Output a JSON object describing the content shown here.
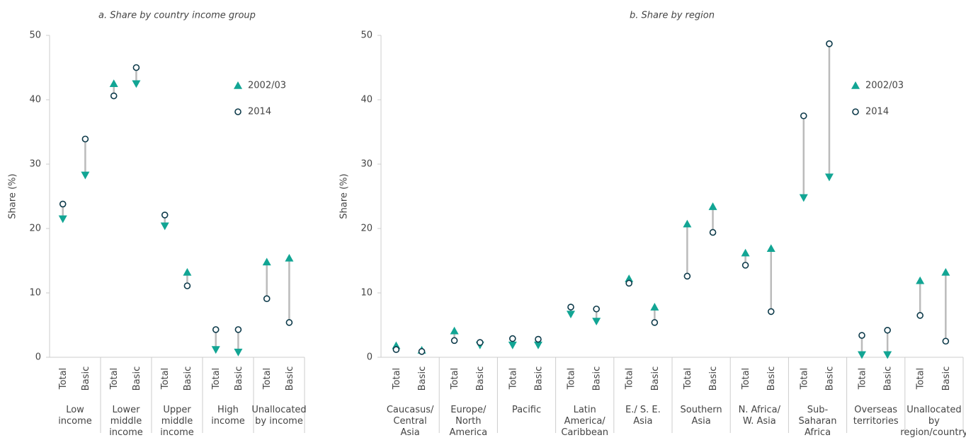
{
  "chart_data": [
    {
      "type": "dumbbell",
      "title": "a. Share by country income group",
      "y_label": "Share (%)",
      "groups": [
        "Low income",
        "Lower middle income",
        "Upper middle income",
        "High income",
        "Unallocated by income"
      ],
      "subcategories": [
        "Total",
        "Basic"
      ],
      "series": [
        {
          "name": "2002/03",
          "color": "#12a594",
          "marker": "triangle",
          "values": [
            21.5,
            28.3,
            42.5,
            42.5,
            20.4,
            13.2,
            1.2,
            0.8,
            14.8,
            15.4
          ]
        },
        {
          "name": "2014",
          "color": "#0d3a4a",
          "marker": "circle",
          "values": [
            23.8,
            33.9,
            40.6,
            45.0,
            22.1,
            11.1,
            4.3,
            4.3,
            9.1,
            5.4
          ]
        }
      ],
      "ylim": [
        0,
        50
      ],
      "yticks": [
        0,
        10,
        20,
        30,
        40,
        50
      ],
      "legend": "upper right"
    },
    {
      "type": "dumbbell",
      "title": "b. Share by region",
      "y_label": "Share (%)",
      "groups": [
        "Caucasus/ Central Asia",
        "Europe/ North America",
        "Pacific",
        "Latin America/ Caribbean",
        "E./ S. E. Asia",
        "Southern Asia",
        "N. Africa/ W. Asia",
        "Sub-Saharan Africa",
        "Overseas territories",
        "Unallocated by region/country"
      ],
      "subcategories": [
        "Total",
        "Basic"
      ],
      "series": [
        {
          "name": "2002/03",
          "color": "#12a594",
          "marker": "triangle",
          "values": [
            1.8,
            1.1,
            4.1,
            1.9,
            1.9,
            1.9,
            6.7,
            5.6,
            12.2,
            7.8,
            20.7,
            23.4,
            16.2,
            16.9,
            24.8,
            28.0,
            0.4,
            0.4,
            11.9,
            13.2
          ]
        },
        {
          "name": "2014",
          "color": "#0d3a4a",
          "marker": "circle",
          "values": [
            1.2,
            0.9,
            2.6,
            2.3,
            2.9,
            2.8,
            7.8,
            7.5,
            11.5,
            5.4,
            12.6,
            19.4,
            14.3,
            7.1,
            37.5,
            48.7,
            3.4,
            4.2,
            6.5,
            2.5
          ]
        }
      ],
      "ylim": [
        0,
        50
      ],
      "yticks": [
        0,
        10,
        20,
        30,
        40,
        50
      ],
      "legend": "upper right"
    }
  ]
}
